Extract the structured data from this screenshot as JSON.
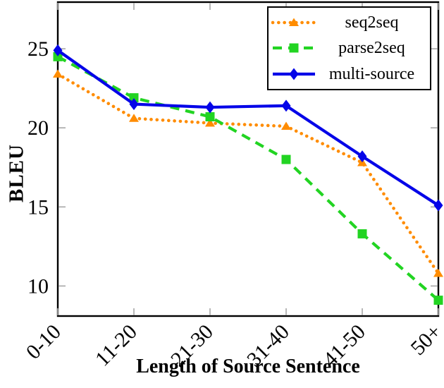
{
  "chart_data": {
    "type": "line",
    "title": "",
    "xlabel": "Length of Source Sentence",
    "ylabel": "BLEU",
    "categories": [
      "0-10",
      "11-20",
      "21-30",
      "31-40",
      "41-50",
      "50+"
    ],
    "series": [
      {
        "name": "seq2seq",
        "color": "#FF8C00",
        "line_style": "dotted",
        "marker": "triangle",
        "values": [
          23.4,
          20.6,
          20.3,
          20.1,
          17.8,
          10.8
        ]
      },
      {
        "name": "parse2seq",
        "color": "#22D422",
        "line_style": "dashed",
        "marker": "square",
        "values": [
          24.5,
          21.9,
          20.7,
          18.0,
          13.3,
          9.1
        ]
      },
      {
        "name": "multi-source",
        "color": "#0505E8",
        "line_style": "solid",
        "marker": "diamond",
        "values": [
          24.9,
          21.5,
          21.3,
          21.4,
          18.2,
          15.1
        ]
      }
    ],
    "yticks": [
      10,
      15,
      20,
      25
    ],
    "ylim": [
      8.1,
      27.95
    ],
    "grid": false,
    "legend_position": "top-right",
    "axis_color": "#000000",
    "tick_color": "#a6a6a6",
    "background": "#ffffff"
  }
}
